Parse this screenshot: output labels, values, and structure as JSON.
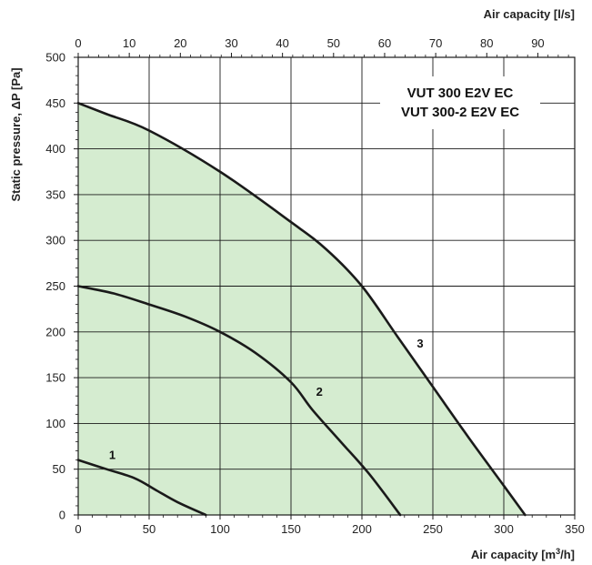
{
  "chart_data": {
    "type": "line",
    "models": [
      "VUT 300 E2V EC",
      "VUT 300-2 E2V EC"
    ],
    "xlabel": "Air capacity [m",
    "xlabel_sup": "3",
    "xlabel_end": "/h]",
    "x2label": "Air capacity [l/s]",
    "ylabel": "Static pressure, ΔP [Pa]",
    "xlim": [
      0,
      350
    ],
    "ylim": [
      0,
      500
    ],
    "x2lim": [
      0,
      97.2222
    ],
    "xticks": [
      0,
      50,
      100,
      150,
      200,
      250,
      300,
      350
    ],
    "yticks": [
      0,
      50,
      100,
      150,
      200,
      250,
      300,
      350,
      400,
      450,
      500
    ],
    "x2ticks": [
      0,
      10,
      20,
      30,
      40,
      50,
      60,
      70,
      80,
      90
    ],
    "grid": true,
    "area_color": "#d5ecd0",
    "line_color": "#1a1a1a",
    "series": [
      {
        "name": "1",
        "label_at": [
          24,
          61
        ],
        "x": [
          0,
          20,
          40,
          55,
          70,
          90
        ],
        "y": [
          60,
          50,
          40,
          27,
          14,
          0
        ]
      },
      {
        "name": "2",
        "label_at": [
          170,
          130
        ],
        "x": [
          0,
          25,
          50,
          75,
          100,
          125,
          150,
          165,
          185,
          205,
          227
        ],
        "y": [
          250,
          242,
          230,
          217,
          200,
          177,
          145,
          115,
          80,
          45,
          0
        ]
      },
      {
        "name": "3",
        "label_at": [
          241,
          183
        ],
        "x": [
          0,
          20,
          50,
          100,
          150,
          175,
          200,
          225,
          250,
          275,
          300,
          315
        ],
        "y": [
          450,
          438,
          420,
          375,
          320,
          290,
          250,
          195,
          140,
          85,
          32,
          0
        ]
      }
    ]
  }
}
